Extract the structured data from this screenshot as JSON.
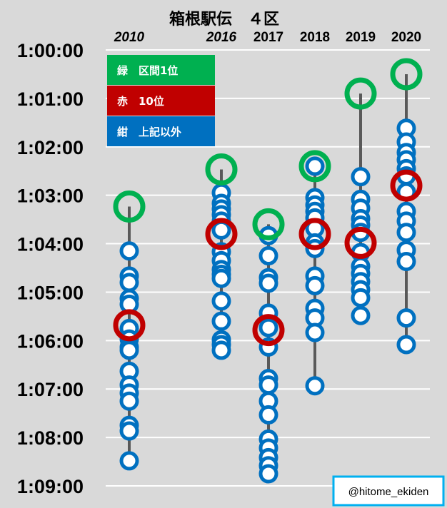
{
  "chart_data": {
    "type": "scatter",
    "title": "箱根駅伝　４区",
    "categories": [
      "2010",
      "2016",
      "2017",
      "2018",
      "2019",
      "2020"
    ],
    "italic_categories": [
      "2010",
      "2016"
    ],
    "ylim": [
      "1:00:00",
      "1:09:00"
    ],
    "y_ticks": [
      "1:00:00",
      "1:01:00",
      "1:02:00",
      "1:03:00",
      "1:04:00",
      "1:05:00",
      "1:06:00",
      "1:07:00",
      "1:08:00",
      "1:09:00"
    ],
    "y_inverted": true,
    "grid": true,
    "legend": [
      {
        "label": "緑　区間1位",
        "color": "#00b050"
      },
      {
        "label": "赤　10位",
        "color": "#c00000"
      },
      {
        "label": "紺　上記以外",
        "color": "#0070c0"
      }
    ],
    "colors": {
      "first": "#00b050",
      "tenth": "#c00000",
      "other": "#0070c0",
      "background": "#d9d9d9",
      "grid": "#ffffff",
      "range_line": "#595959"
    },
    "series": [
      {
        "year": "2010",
        "first": "1:03:14",
        "tenth": "1:05:41",
        "others": [
          "1:04:09",
          "1:04:40",
          "1:04:48",
          "1:05:08",
          "1:05:15",
          "1:05:45",
          "1:05:58",
          "1:06:08",
          "1:06:12",
          "1:06:38",
          "1:06:55",
          "1:07:05",
          "1:07:15",
          "1:07:45",
          "1:07:52",
          "1:08:29"
        ]
      },
      {
        "year": "2016",
        "first": "1:02:28",
        "tenth": "1:03:48",
        "others": [
          "1:02:57",
          "1:03:10",
          "1:03:17",
          "1:03:24",
          "1:03:32",
          "1:03:43",
          "1:04:10",
          "1:04:21",
          "1:04:32",
          "1:04:38",
          "1:04:43",
          "1:05:11",
          "1:05:36",
          "1:05:59",
          "1:06:05",
          "1:06:12"
        ]
      },
      {
        "year": "2017",
        "first": "1:03:36",
        "tenth": "1:05:47",
        "others": [
          "1:03:50",
          "1:04:15",
          "1:04:42",
          "1:04:49",
          "1:05:26",
          "1:05:44",
          "1:06:08",
          "1:06:47",
          "1:06:55",
          "1:07:15",
          "1:07:32",
          "1:08:02",
          "1:08:13",
          "1:08:25",
          "1:08:35",
          "1:08:45"
        ]
      },
      {
        "year": "2018",
        "first": "1:02:24",
        "tenth": "1:03:48",
        "others": [
          "1:02:24",
          "1:03:03",
          "1:03:12",
          "1:03:20",
          "1:03:28",
          "1:03:41",
          "1:03:59",
          "1:04:06",
          "1:04:40",
          "1:04:52",
          "1:05:20",
          "1:05:32",
          "1:05:50",
          "1:06:56"
        ]
      },
      {
        "year": "2019",
        "first": "1:00:54",
        "tenth": "1:03:59",
        "others": [
          "1:02:37",
          "1:03:05",
          "1:03:16",
          "1:03:29",
          "1:03:37",
          "1:03:46",
          "1:04:11",
          "1:04:28",
          "1:04:37",
          "1:04:47",
          "1:04:57",
          "1:05:07",
          "1:05:29"
        ]
      },
      {
        "year": "2020",
        "first": "1:00:30",
        "tenth": "1:02:48",
        "others": [
          "1:01:37",
          "1:01:54",
          "1:02:07",
          "1:02:16",
          "1:02:27",
          "1:02:36",
          "1:02:56",
          "1:03:20",
          "1:03:32",
          "1:03:46",
          "1:04:08",
          "1:04:22",
          "1:05:32",
          "1:06:05"
        ]
      }
    ]
  },
  "credit": "@hitome_ekiden"
}
